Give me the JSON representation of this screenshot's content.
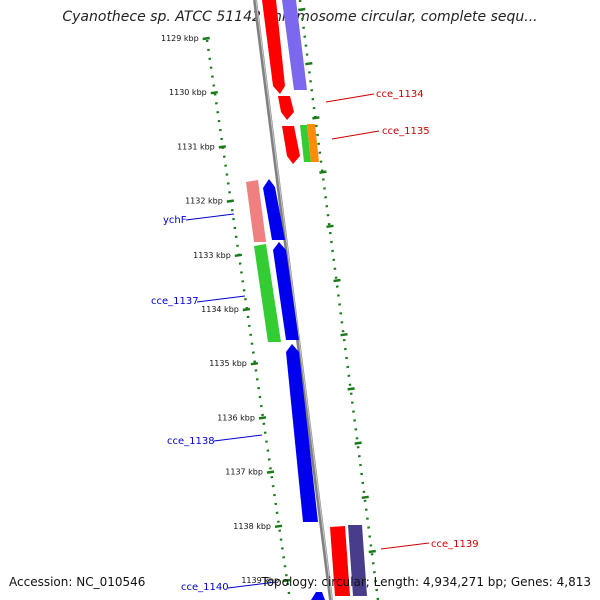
{
  "title": "Cyanothece sp. ATCC 51142 chromosome circular, complete sequ...",
  "accession": "Accession: NC_010546",
  "summary": "Topology: circular; Length: 4,934,271 bp; Genes: 4,813",
  "ticks": [
    "1129 kbp",
    "1130 kbp",
    "1131 kbp",
    "1132 kbp",
    "1133 kbp",
    "1134 kbp",
    "1135 kbp",
    "1136 kbp",
    "1137 kbp",
    "1138 kbp",
    "1139 kbp"
  ],
  "labels": {
    "right": [
      "cce_1134",
      "cce_1135",
      "cce_1139"
    ],
    "left": [
      "ychF",
      "cce_1137",
      "cce_1138",
      "cce_1140"
    ]
  },
  "colors": {
    "red": "#ff0000",
    "purple": "#7b68ee",
    "blue": "#0000ee",
    "green": "#33cc33",
    "orange": "#ff8c00",
    "pink": "#f08080",
    "darkslate": "#483d8b",
    "tick": "#1a7a1a",
    "label_right": "#cc0000",
    "label_left": "#0000cc",
    "backbone": "#808080"
  }
}
